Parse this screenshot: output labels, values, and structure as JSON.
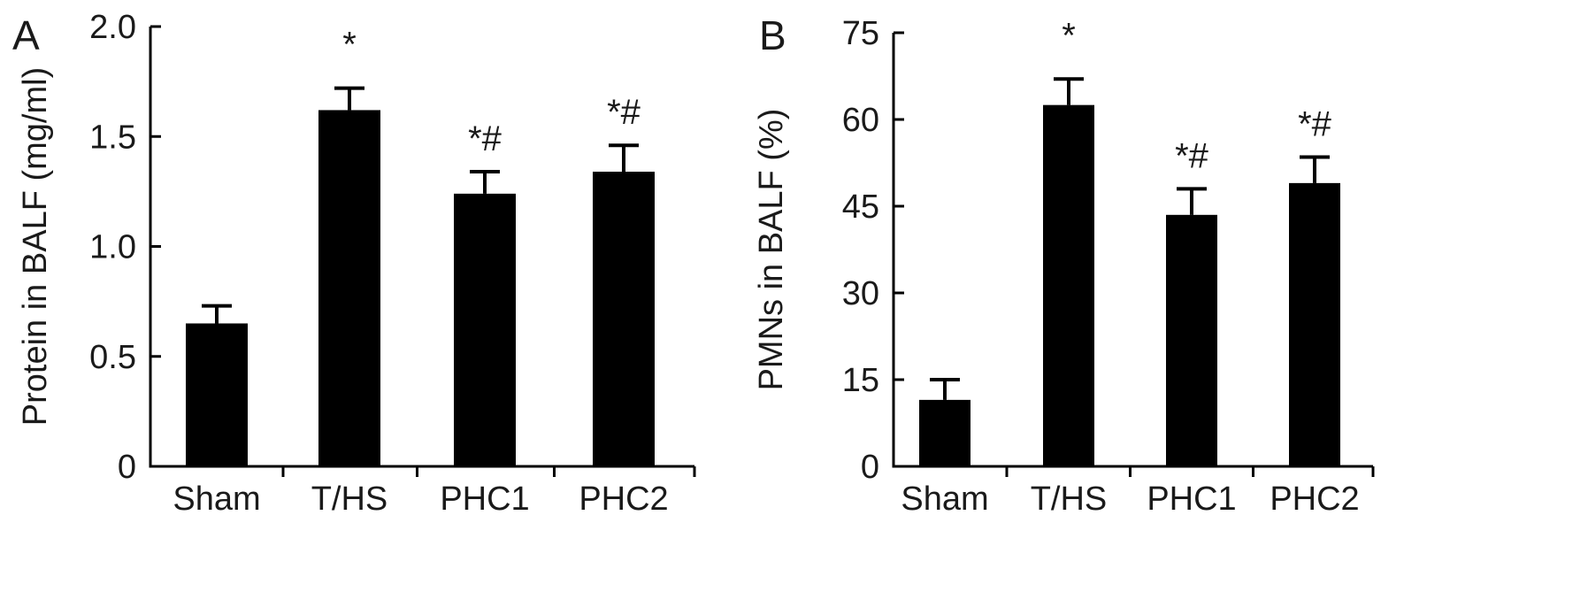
{
  "chart_data": [
    {
      "type": "bar",
      "panel": "A",
      "categories": [
        "Sham",
        "T/HS",
        "PHC1",
        "PHC2"
      ],
      "values": [
        0.65,
        1.62,
        1.24,
        1.34
      ],
      "errors": [
        0.08,
        0.1,
        0.1,
        0.12
      ],
      "annotations": [
        "",
        "*",
        "*#",
        "*#"
      ],
      "ylabel": "Protein in BALF (mg/ml)",
      "xlabel": "",
      "ylim": [
        0,
        2.0
      ],
      "yticks": [
        0,
        0.5,
        1.0,
        1.5,
        2.0
      ],
      "ytick_labels": [
        "0",
        "0.5",
        "1.0",
        "1.5",
        "2.0"
      ],
      "bar_color": "#000000"
    },
    {
      "type": "bar",
      "panel": "B",
      "categories": [
        "Sham",
        "T/HS",
        "PHC1",
        "PHC2"
      ],
      "values": [
        11.5,
        62.5,
        43.5,
        49.0
      ],
      "errors": [
        3.5,
        4.5,
        4.5,
        4.5
      ],
      "annotations": [
        "",
        "*",
        "*#",
        "*#"
      ],
      "ylabel": "PMNs in BALF (%)",
      "xlabel": "",
      "ylim": [
        0,
        75
      ],
      "yticks": [
        0,
        15,
        30,
        45,
        60,
        75
      ],
      "ytick_labels": [
        "0",
        "15",
        "30",
        "45",
        "60",
        "75"
      ],
      "bar_color": "#000000"
    }
  ]
}
